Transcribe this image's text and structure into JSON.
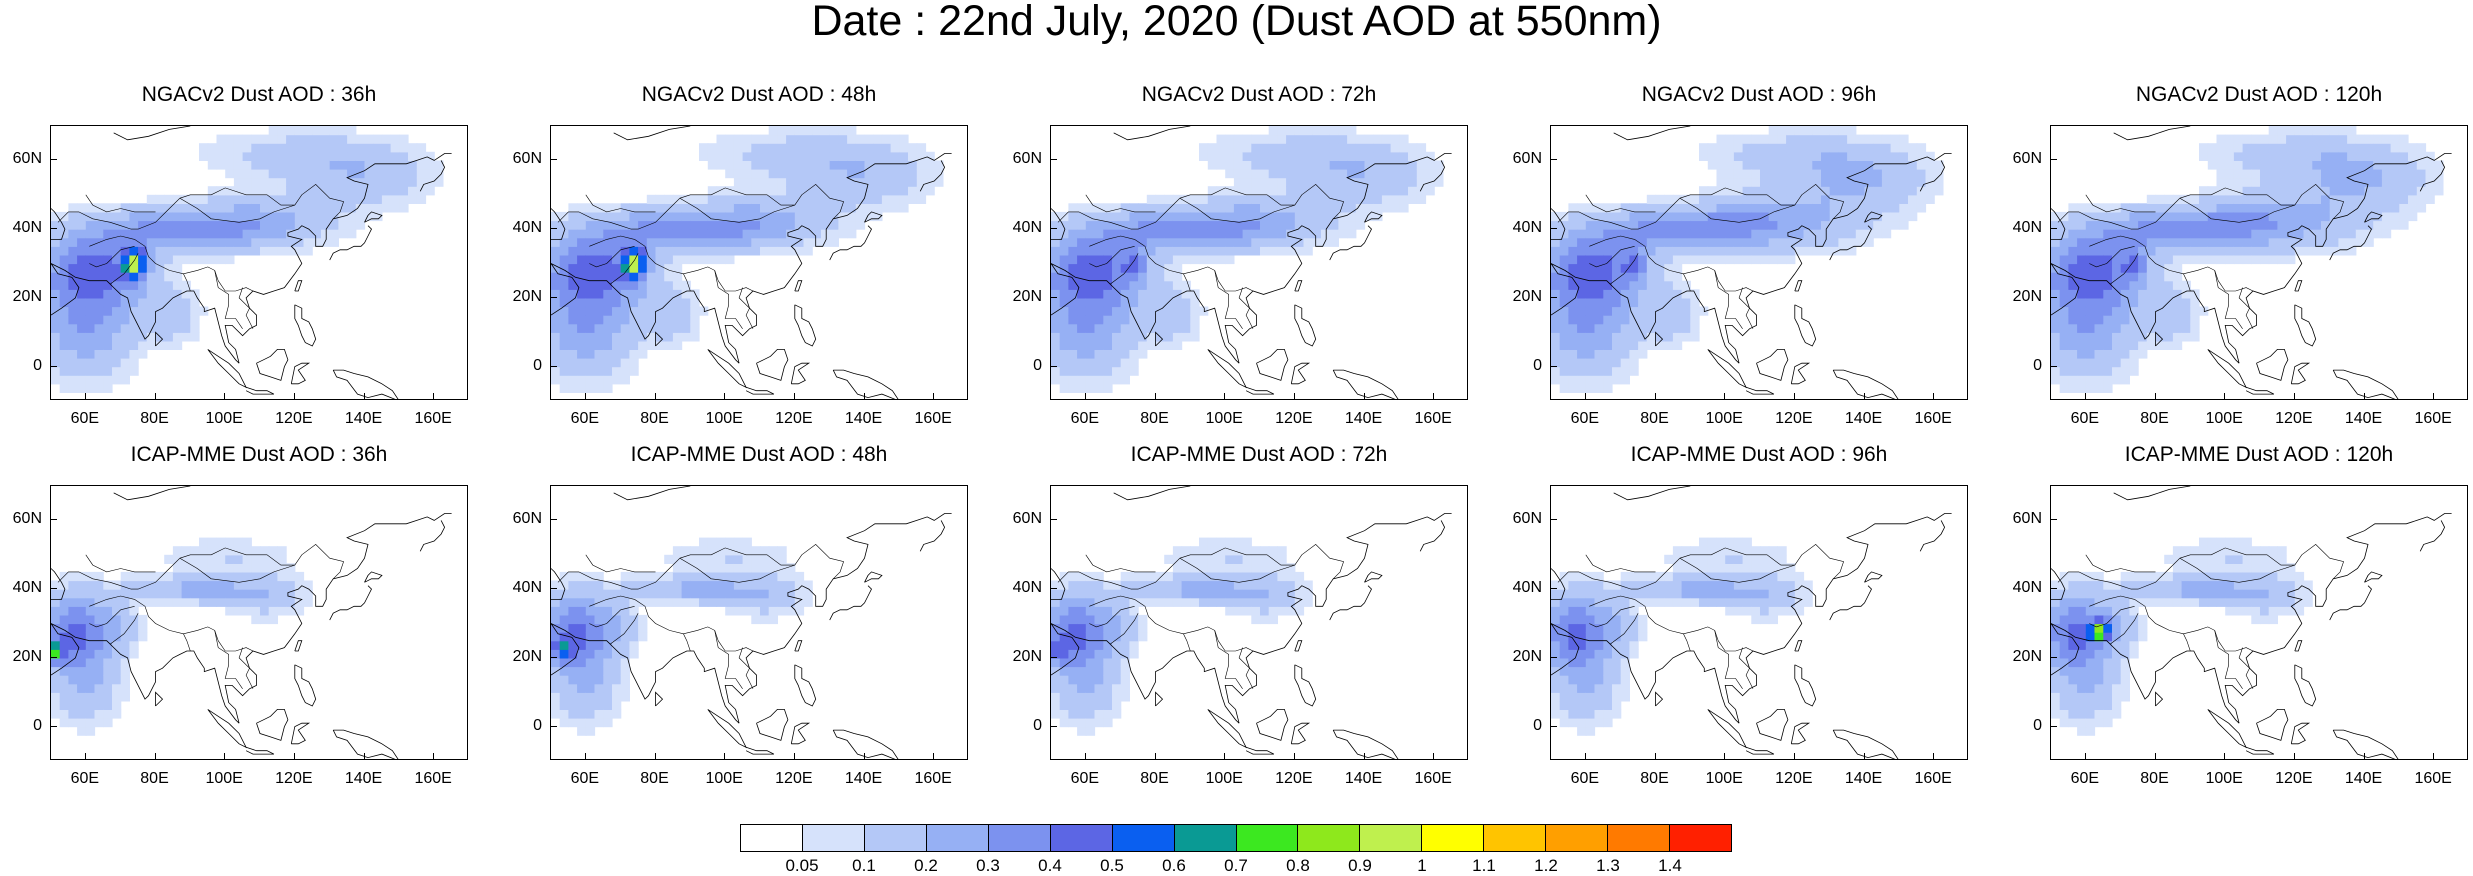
{
  "title": "Date : 22nd July, 2020 (Dust AOD at 550nm)",
  "panels": [
    {
      "title": "NGACv2 Dust AOD : 36h",
      "model": "NGACv2",
      "lead": "36h"
    },
    {
      "title": "NGACv2 Dust AOD : 48h",
      "model": "NGACv2",
      "lead": "48h"
    },
    {
      "title": "NGACv2 Dust AOD : 72h",
      "model": "NGACv2",
      "lead": "72h"
    },
    {
      "title": "NGACv2 Dust AOD : 96h",
      "model": "NGACv2",
      "lead": "96h"
    },
    {
      "title": "NGACv2 Dust AOD : 120h",
      "model": "NGACv2",
      "lead": "120h"
    },
    {
      "title": "ICAP-MME Dust AOD : 36h",
      "model": "ICAP-MME",
      "lead": "36h"
    },
    {
      "title": "ICAP-MME Dust AOD : 48h",
      "model": "ICAP-MME",
      "lead": "48h"
    },
    {
      "title": "ICAP-MME Dust AOD : 72h",
      "model": "ICAP-MME",
      "lead": "72h"
    },
    {
      "title": "ICAP-MME Dust AOD : 96h",
      "model": "ICAP-MME",
      "lead": "96h"
    },
    {
      "title": "ICAP-MME Dust AOD : 120h",
      "model": "ICAP-MME",
      "lead": "120h"
    }
  ],
  "y_ticks": [
    "60N",
    "40N",
    "20N",
    "0"
  ],
  "x_ticks": [
    "60E",
    "80E",
    "100E",
    "120E",
    "140E",
    "160E"
  ],
  "colorbar": {
    "labels": [
      "0.05",
      "0.1",
      "0.2",
      "0.3",
      "0.4",
      "0.5",
      "0.6",
      "0.7",
      "0.8",
      "0.9",
      "1",
      "1.1",
      "1.2",
      "1.3",
      "1.4"
    ],
    "colors": [
      "#ffffff",
      "#d6e2fb",
      "#b4c8f7",
      "#96b0f4",
      "#7c92ef",
      "#5c66e4",
      "#0a5ff0",
      "#0a9a94",
      "#3ce820",
      "#8ee81c",
      "#bff04e",
      "#ffff00",
      "#ffc400",
      "#ff9f00",
      "#ff7a00",
      "#ff2000"
    ]
  }
}
